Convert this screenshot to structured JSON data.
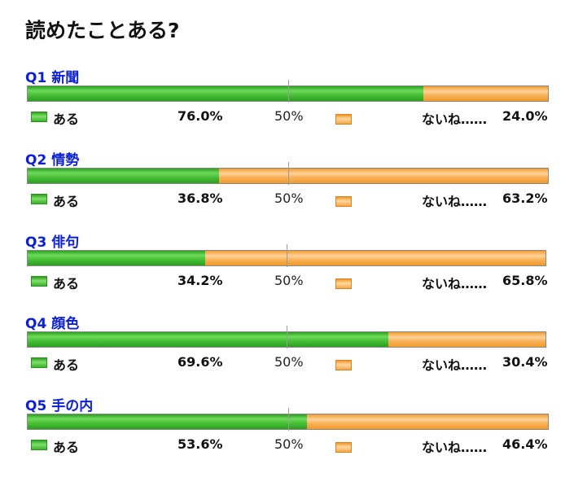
{
  "title": "読めたことある?",
  "legend": {
    "yes_label": "ある",
    "no_label": "ないね……",
    "midpoint_label": "50%"
  },
  "colors": {
    "yes": "#3fbd2e",
    "no": "#f7a847",
    "question_label": "#0a1fd6"
  },
  "chart_data": {
    "type": "bar",
    "orientation": "horizontal",
    "stacked": true,
    "title": "読めたことある?",
    "categories": [
      "Q1 新聞",
      "Q2 情勢",
      "Q3 俳句",
      "Q4 顔色",
      "Q5 手の内"
    ],
    "series": [
      {
        "name": "ある",
        "values": [
          76.0,
          36.8,
          34.2,
          69.6,
          53.6
        ]
      },
      {
        "name": "ないね……",
        "values": [
          24.0,
          63.2,
          65.8,
          30.4,
          46.4
        ]
      }
    ],
    "value_labels": {
      "yes": [
        "76.0%",
        "36.8%",
        "34.2%",
        "69.6%",
        "53.6%"
      ],
      "no": [
        "24.0%",
        "63.2%",
        "65.8%",
        "30.4%",
        "46.4%"
      ]
    },
    "xlim": [
      0,
      100
    ],
    "reference_line": 50,
    "grid": false
  },
  "questions": [
    {
      "label": "Q1 新聞",
      "yes_text": "76.0%",
      "no_text": "24.0%"
    },
    {
      "label": "Q2 情勢",
      "yes_text": "36.8%",
      "no_text": "63.2%"
    },
    {
      "label": "Q3 俳句",
      "yes_text": "34.2%",
      "no_text": "65.8%"
    },
    {
      "label": "Q4 顔色",
      "yes_text": "69.6%",
      "no_text": "30.4%"
    },
    {
      "label": "Q5 手の内",
      "yes_text": "53.6%",
      "no_text": "46.4%"
    }
  ]
}
